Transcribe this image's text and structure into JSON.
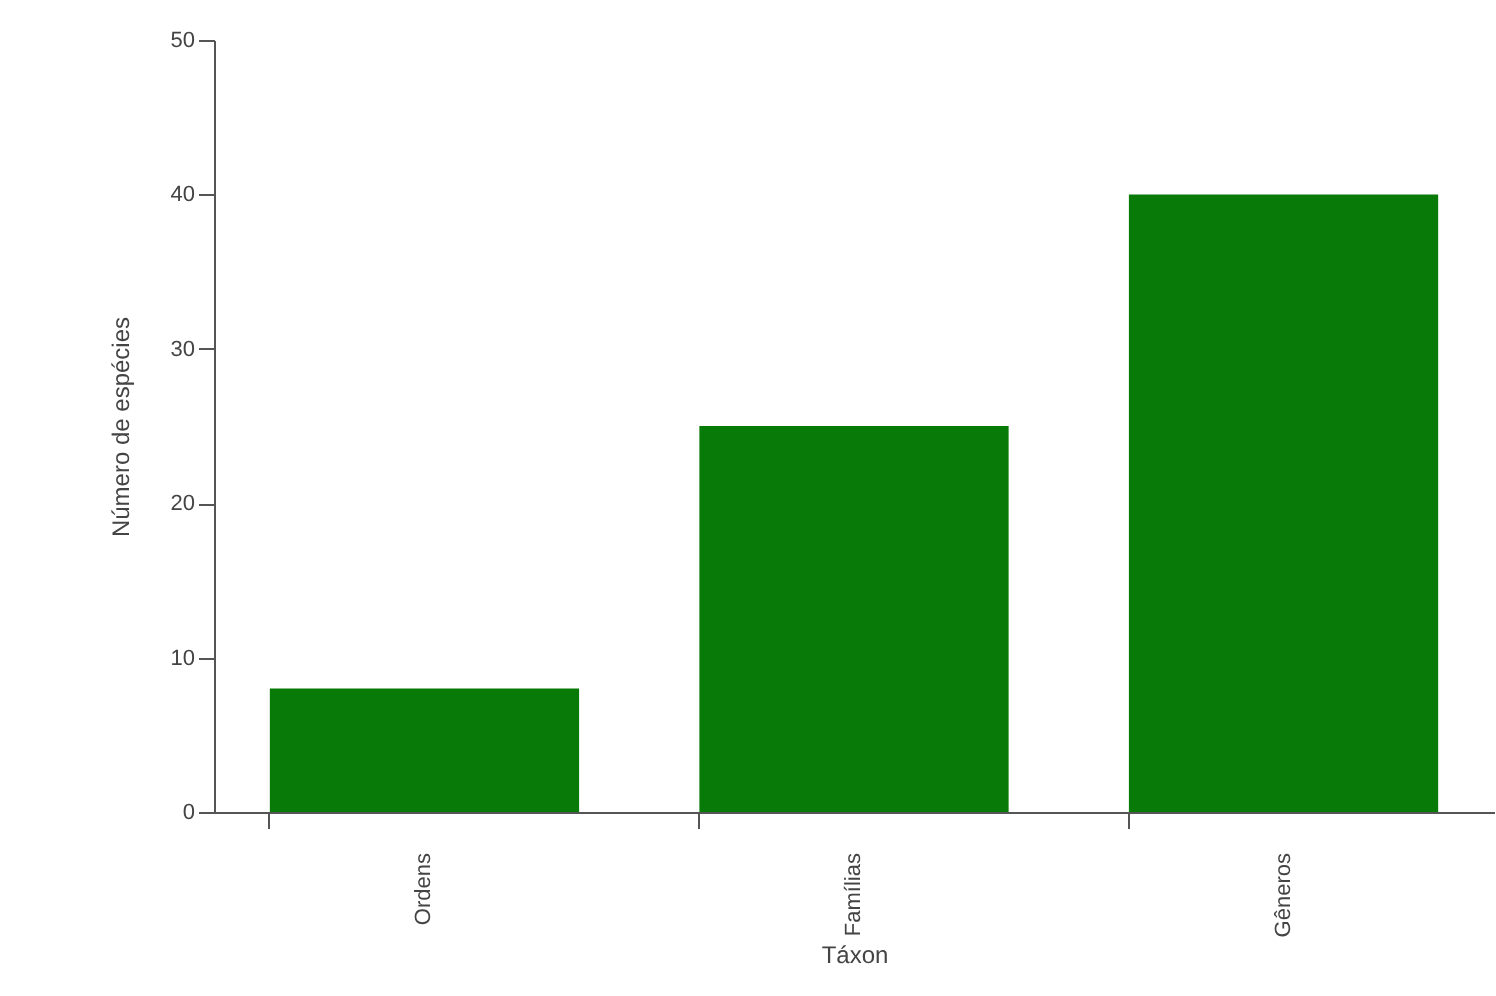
{
  "chart_data": {
    "type": "bar",
    "xlabel": "Táxon",
    "ylabel": "Número de espécies",
    "categories": [
      "Ordens",
      "Famílias",
      "Gêneros"
    ],
    "values": [
      8,
      25,
      40
    ],
    "color": "#087a08",
    "ylim": [
      0,
      50
    ],
    "yticks": [
      0,
      10,
      20,
      30,
      40,
      50
    ],
    "grid": false
  }
}
